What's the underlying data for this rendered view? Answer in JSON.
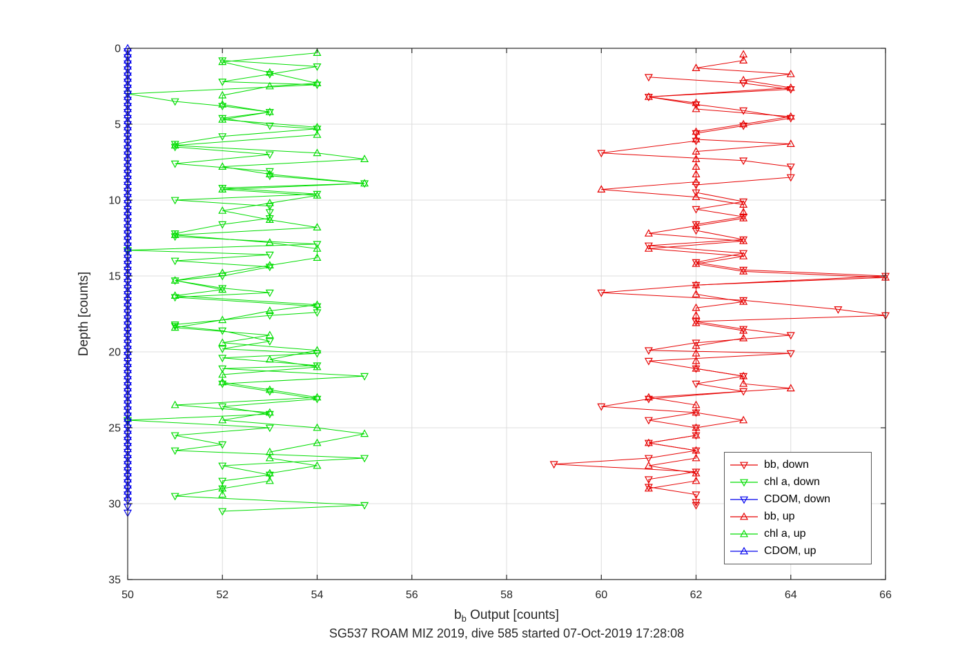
{
  "figure": {
    "ylabel": "Depth [counts]",
    "xlabel_plain": "b_b Output [counts]",
    "subtitle": "SG537 ROAM MIZ 2019, dive 585 started 07-Oct-2019 17:28:08"
  },
  "chart_data": {
    "type": "line",
    "title": "SG537 ROAM MIZ 2019, dive 585 started 07-Oct-2019 17:28:08",
    "xlabel": "b_b Output [counts]",
    "xlabel_parts": {
      "pre": "b",
      "sub": "b",
      "post": " Output [counts]"
    },
    "ylabel": "Depth [counts]",
    "xlim": [
      50,
      66
    ],
    "ylim": [
      0,
      35
    ],
    "xticks": [
      50,
      52,
      54,
      56,
      58,
      60,
      62,
      64,
      66
    ],
    "yticks": [
      0,
      5,
      10,
      15,
      20,
      25,
      30,
      35
    ],
    "y_axis_direction": "reversed (depth 0 at top, increasing downward)",
    "grid": true,
    "legend_position": "lower right inside axes",
    "style": {
      "background": "#ffffff",
      "grid_color": "#dcdcdc",
      "axis_color": "#262626",
      "bb_color": "#e60000",
      "chl_color": "#00dd00",
      "cdom_color": "#0000ee"
    },
    "series": [
      {
        "name": "bb, down",
        "color": "#e60000",
        "marker": "triangle-down",
        "depths": [
          1.9,
          2.3,
          2.7,
          3.2,
          3.7,
          4.1,
          4.6,
          5.1,
          5.6,
          6.1,
          6.9,
          7.4,
          7.8,
          8.5,
          9.0,
          9.5,
          10.1,
          10.6,
          11.1,
          11.6,
          12.0,
          12.6,
          13.0,
          13.5,
          14.1,
          14.6,
          15.0,
          15.6,
          16.1,
          16.6,
          17.2,
          17.6,
          18.0,
          18.5,
          18.9,
          19.4,
          19.9,
          20.1,
          20.6,
          21.1,
          21.6,
          22.1,
          22.6,
          23.1,
          23.6,
          24.0,
          24.5,
          25.0,
          25.5,
          26.0,
          26.5,
          27.0,
          27.4,
          27.9,
          28.4,
          28.9,
          29.4,
          29.9,
          30.1
        ],
        "counts": [
          61,
          63,
          64,
          61,
          62,
          63,
          64,
          63,
          62,
          62,
          60,
          63,
          64,
          64,
          62,
          62,
          63,
          62,
          63,
          62,
          62,
          63,
          61,
          63,
          62,
          63,
          66,
          62,
          60,
          63,
          65,
          66,
          62,
          63,
          64,
          62,
          61,
          64,
          61,
          62,
          63,
          62,
          63,
          61,
          60,
          62,
          61,
          62,
          62,
          61,
          62,
          61,
          59,
          62,
          61,
          61,
          62,
          62,
          62
        ]
      },
      {
        "name": "chl a, down",
        "color": "#00dd00",
        "marker": "triangle-down",
        "depths": [
          0.8,
          1.2,
          1.7,
          2.2,
          2.4,
          3.0,
          3.5,
          3.8,
          4.2,
          4.6,
          5.1,
          5.3,
          5.8,
          6.3,
          6.5,
          7.0,
          7.6,
          8.1,
          8.4,
          8.9,
          9.2,
          9.6,
          10.0,
          10.4,
          10.8,
          11.2,
          11.6,
          12.2,
          12.4,
          12.9,
          13.3,
          13.6,
          14.0,
          14.4,
          15.0,
          15.3,
          15.8,
          16.1,
          16.4,
          17.0,
          17.4,
          17.6,
          18.2,
          18.3,
          18.6,
          19.3,
          19.8,
          20.1,
          20.4,
          20.9,
          21.1,
          21.6,
          22.1,
          22.6,
          23.1,
          23.6,
          24.1,
          24.5,
          25.0,
          25.5,
          26.1,
          26.5,
          27.0,
          27.5,
          28.1,
          28.5,
          29.0,
          29.5,
          30.1,
          30.5
        ],
        "counts": [
          52,
          54,
          53,
          52,
          54,
          50,
          51,
          52,
          53,
          52,
          53,
          54,
          52,
          51,
          51,
          53,
          51,
          53,
          53,
          55,
          52,
          54,
          51,
          53,
          53,
          53,
          52,
          51,
          51,
          54,
          50,
          53,
          51,
          53,
          52,
          51,
          52,
          53,
          51,
          54,
          54,
          53,
          51,
          51,
          52,
          53,
          52,
          54,
          52,
          54,
          52,
          55,
          52,
          53,
          54,
          52,
          53,
          50,
          53,
          51,
          52,
          51,
          55,
          52,
          53,
          52,
          52,
          51,
          55,
          52
        ]
      },
      {
        "name": "CDOM, down",
        "color": "#0000ee",
        "marker": "triangle-down",
        "depths": [
          0.2,
          0.6,
          1.0,
          1.4,
          1.8,
          2.2,
          2.6,
          3.0,
          3.4,
          3.8,
          4.2,
          4.6,
          5.0,
          5.4,
          5.8,
          6.2,
          6.6,
          7.0,
          7.4,
          7.8,
          8.2,
          8.6,
          9.0,
          9.4,
          9.8,
          10.2,
          10.6,
          11.0,
          11.4,
          11.8,
          12.2,
          12.6,
          13.0,
          13.4,
          13.8,
          14.2,
          14.6,
          15.0,
          15.4,
          15.8,
          16.2,
          16.6,
          17.0,
          17.4,
          17.8,
          18.2,
          18.6,
          19.0,
          19.4,
          19.8,
          20.2,
          20.6,
          21.0,
          21.4,
          21.8,
          22.2,
          22.6,
          23.0,
          23.4,
          23.8,
          24.2,
          24.6,
          25.0,
          25.4,
          25.8,
          26.2,
          26.6,
          27.0,
          27.4,
          27.8,
          28.2,
          28.6,
          29.0,
          29.4,
          29.8,
          30.2,
          30.6
        ],
        "count_const": 50
      },
      {
        "name": "bb, up",
        "color": "#e60000",
        "marker": "triangle-up",
        "depths": [
          0.4,
          0.8,
          1.3,
          1.7,
          2.1,
          2.6,
          3.2,
          3.6,
          4.0,
          4.5,
          5.0,
          5.5,
          6.0,
          6.3,
          6.8,
          7.3,
          7.8,
          8.3,
          8.8,
          9.3,
          9.8,
          10.3,
          10.8,
          11.2,
          11.7,
          12.2,
          12.7,
          13.2,
          13.7,
          14.2,
          14.7,
          15.1,
          15.6,
          16.2,
          16.7,
          17.1,
          17.6,
          18.1,
          18.6,
          19.1,
          19.6,
          20.1,
          20.6,
          21.1,
          21.6,
          22.1,
          22.4,
          23.0,
          23.5,
          24.0,
          24.5,
          25.0,
          25.5,
          26.0,
          26.5,
          27.0,
          27.5,
          28.0,
          28.5,
          29.0
        ],
        "counts": [
          63,
          63,
          62,
          64,
          63,
          64,
          61,
          62,
          62,
          64,
          63,
          62,
          62,
          64,
          62,
          62,
          62,
          62,
          62,
          60,
          62,
          63,
          63,
          63,
          62,
          61,
          63,
          61,
          63,
          62,
          63,
          66,
          62,
          62,
          63,
          62,
          62,
          62,
          63,
          63,
          62,
          62,
          62,
          62,
          63,
          63,
          64,
          61,
          62,
          62,
          63,
          62,
          62,
          61,
          62,
          62,
          61,
          62,
          62,
          61
        ]
      },
      {
        "name": "chl a, up",
        "color": "#00dd00",
        "marker": "triangle-up",
        "depths": [
          0.3,
          0.9,
          1.6,
          2.3,
          2.5,
          3.1,
          3.7,
          4.2,
          4.7,
          5.2,
          5.7,
          6.4,
          6.9,
          7.3,
          7.8,
          8.3,
          8.9,
          9.3,
          9.7,
          10.2,
          10.7,
          11.3,
          11.8,
          12.3,
          12.8,
          13.2,
          13.8,
          14.3,
          14.8,
          15.3,
          15.9,
          16.3,
          16.9,
          17.3,
          17.9,
          18.4,
          18.9,
          19.4,
          19.9,
          20.5,
          21.0,
          21.5,
          22.0,
          22.5,
          23.0,
          23.5,
          24.0,
          24.5,
          25.0,
          25.4,
          26.0,
          26.6,
          27.0,
          27.5,
          28.0,
          28.5,
          29.0,
          29.4
        ],
        "counts": [
          54,
          52,
          53,
          54,
          53,
          52,
          52,
          53,
          52,
          54,
          54,
          51,
          54,
          55,
          52,
          53,
          55,
          52,
          54,
          53,
          52,
          53,
          54,
          51,
          53,
          54,
          54,
          53,
          52,
          51,
          52,
          51,
          54,
          53,
          52,
          51,
          53,
          52,
          54,
          53,
          54,
          52,
          52,
          53,
          54,
          51,
          53,
          52,
          54,
          55,
          54,
          53,
          53,
          54,
          53,
          53,
          52,
          52
        ]
      },
      {
        "name": "CDOM, up",
        "color": "#0000ee",
        "marker": "triangle-up",
        "depths": [
          0.0,
          0.4,
          0.8,
          1.2,
          1.6,
          2.0,
          2.4,
          2.8,
          3.2,
          3.6,
          4.0,
          4.4,
          4.8,
          5.2,
          5.6,
          6.0,
          6.4,
          6.8,
          7.2,
          7.6,
          8.0,
          8.4,
          8.8,
          9.2,
          9.6,
          10.0,
          10.4,
          10.8,
          11.2,
          11.6,
          12.0,
          12.4,
          12.8,
          13.2,
          13.6,
          14.0,
          14.4,
          14.8,
          15.2,
          15.6,
          16.0,
          16.4,
          16.8,
          17.2,
          17.6,
          18.0,
          18.4,
          18.8,
          19.2,
          19.6,
          20.0,
          20.4,
          20.8,
          21.2,
          21.6,
          22.0,
          22.4,
          22.8,
          23.2,
          23.6,
          24.0,
          24.4,
          24.8,
          25.2,
          25.6,
          26.0,
          26.4,
          26.8,
          27.2,
          27.6,
          28.0,
          28.4,
          28.8,
          29.2,
          29.6
        ],
        "count_const": 50
      }
    ]
  }
}
